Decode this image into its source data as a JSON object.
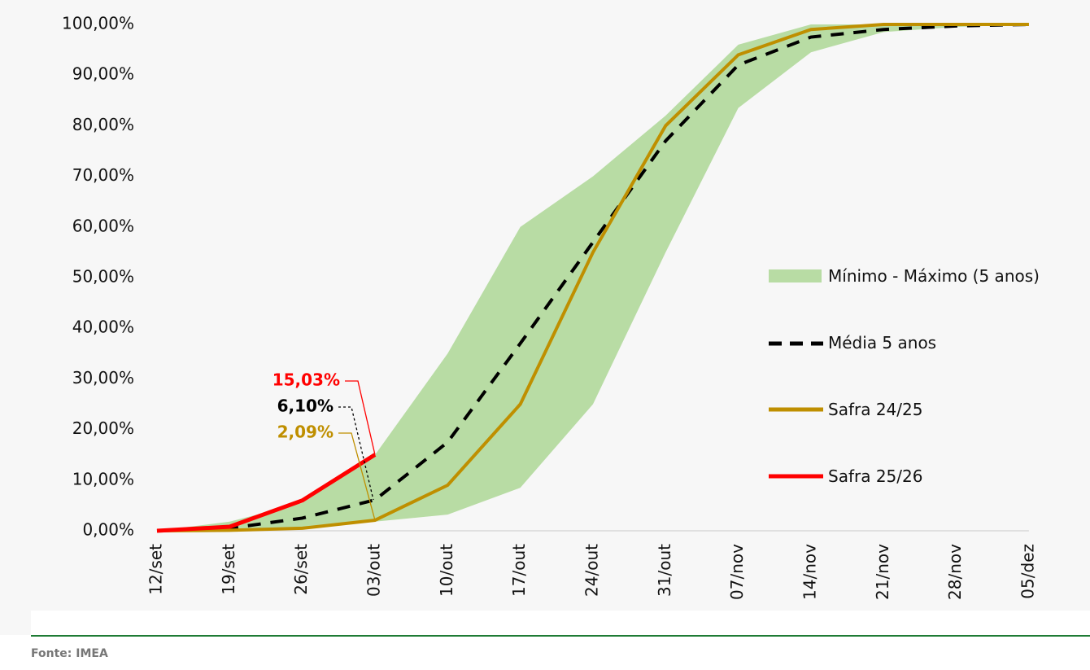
{
  "chart_data": {
    "type": "line",
    "categories": [
      "12/set",
      "19/set",
      "26/set",
      "03/out",
      "10/out",
      "17/out",
      "24/out",
      "31/out",
      "07/nov",
      "14/nov",
      "21/nov",
      "28/nov",
      "05/dez"
    ],
    "band": {
      "name": "Mínimo - Máximo (5 anos)",
      "color": "#b8dca4",
      "min": [
        0,
        0,
        0.5,
        1.8,
        3.2,
        8.5,
        25,
        55,
        83.5,
        94.5,
        98.5,
        99.5,
        100
      ],
      "max": [
        0,
        1.8,
        5.5,
        15,
        35,
        60,
        70,
        82,
        96,
        100,
        100,
        100,
        100
      ]
    },
    "series": [
      {
        "name": "Média 5 anos",
        "color": "#000000",
        "dash": true,
        "values": [
          0,
          0.5,
          2.5,
          6.1,
          17.5,
          37,
          57,
          77,
          92,
          97.5,
          99,
          99.7,
          100
        ],
        "value_labels": [
          null,
          null,
          null,
          "6,10%",
          null,
          null,
          null,
          null,
          null,
          null,
          null,
          null,
          null
        ]
      },
      {
        "name": "Safra 24/25",
        "color": "#bf8f00",
        "dash": false,
        "values": [
          0,
          0.1,
          0.5,
          2.09,
          9,
          25,
          55,
          80,
          94,
          99,
          100,
          100,
          100
        ],
        "value_labels": [
          null,
          null,
          null,
          "2,09%",
          null,
          null,
          null,
          null,
          null,
          null,
          null,
          null,
          null
        ]
      },
      {
        "name": "Safra 25/26",
        "color": "#ff0000",
        "dash": false,
        "values": [
          0,
          0.8,
          6,
          15.03,
          null,
          null,
          null,
          null,
          null,
          null,
          null,
          null,
          null
        ],
        "value_labels": [
          null,
          null,
          null,
          "15,03%",
          null,
          null,
          null,
          null,
          null,
          null,
          null,
          null,
          null
        ]
      }
    ],
    "ylim": [
      0,
      100
    ],
    "yticks": [
      {
        "value": 0,
        "label": "0,00%"
      },
      {
        "value": 10,
        "label": "10,00%"
      },
      {
        "value": 20,
        "label": "20,00%"
      },
      {
        "value": 30,
        "label": "30,00%"
      },
      {
        "value": 40,
        "label": "40,00%"
      },
      {
        "value": 50,
        "label": "50,00%"
      },
      {
        "value": 60,
        "label": "60,00%"
      },
      {
        "value": 70,
        "label": "70,00%"
      },
      {
        "value": 80,
        "label": "80,00%"
      },
      {
        "value": 90,
        "label": "90,00%"
      },
      {
        "value": 100,
        "label": "100,00%"
      }
    ],
    "source": "Fonte: IMEA"
  }
}
